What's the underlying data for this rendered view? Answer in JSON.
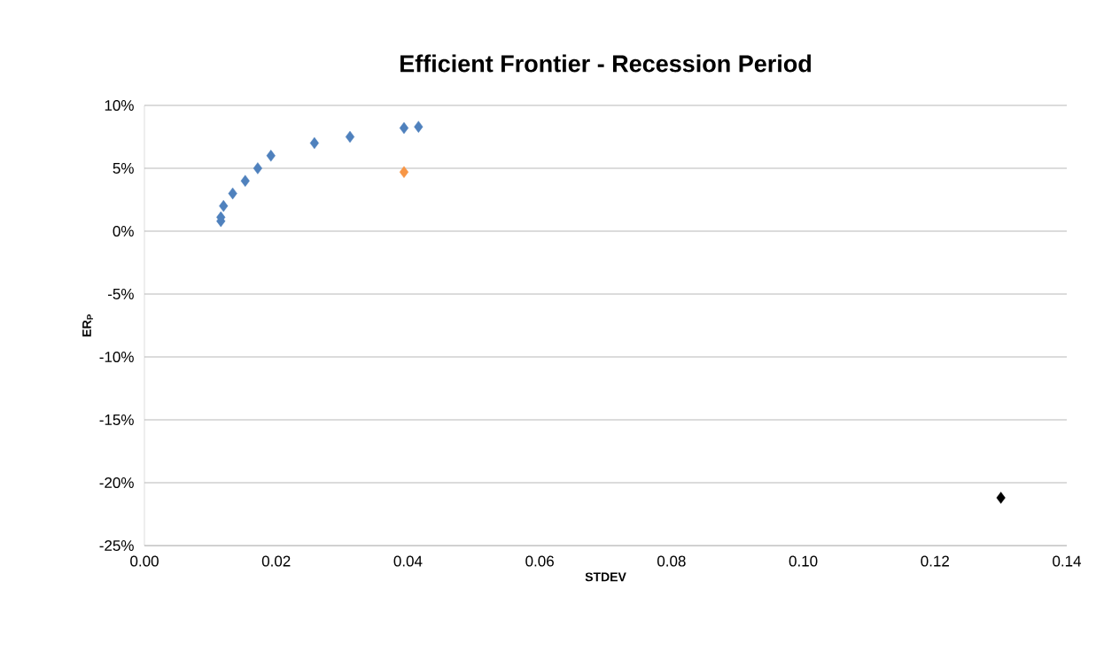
{
  "chart_data": {
    "type": "scatter",
    "title": "Efficient Frontier - Recession Period",
    "xlabel": "STDEV",
    "ylabel": "ER$_{P}$",
    "marker": "diamond",
    "grid": "y",
    "series": [
      {
        "color": "#4f81bd",
        "x": [
          0.0116,
          0.0116,
          0.012,
          0.0134,
          0.0153,
          0.0172,
          0.0192,
          0.0258,
          0.0312,
          0.0394,
          0.0416
        ],
        "values": [
          0.8,
          1.1,
          2.0,
          3.0,
          4.0,
          5.0,
          6.0,
          7.0,
          7.5,
          8.2,
          8.3
        ]
      },
      {
        "color": "#f79646",
        "x": [
          0.0394
        ],
        "values": [
          4.7
        ]
      },
      {
        "color": "#000000",
        "x": [
          0.13
        ],
        "values": [
          -21.2
        ]
      }
    ],
    "xlim": [
      0,
      0.14
    ],
    "ylim": [
      -25,
      10
    ],
    "xticks": [
      {
        "value": 0,
        "label": "0.00"
      },
      {
        "value": 0.02,
        "label": "0.02"
      },
      {
        "value": 0.04,
        "label": "0.04"
      },
      {
        "value": 0.06,
        "label": "0.06"
      },
      {
        "value": 0.08,
        "label": "0.08"
      },
      {
        "value": 0.1,
        "label": "0.10"
      },
      {
        "value": 0.12,
        "label": "0.12"
      },
      {
        "value": 0.14,
        "label": "0.14"
      }
    ],
    "yticks": [
      {
        "value": -25,
        "label": "-25%"
      },
      {
        "value": -20,
        "label": "-20%"
      },
      {
        "value": -15,
        "label": "-15%"
      },
      {
        "value": -10,
        "label": "-10%"
      },
      {
        "value": -5,
        "label": "-5%"
      },
      {
        "value": 0,
        "label": "0%"
      },
      {
        "value": 5,
        "label": "5%"
      },
      {
        "value": 10,
        "label": "10%"
      }
    ]
  }
}
